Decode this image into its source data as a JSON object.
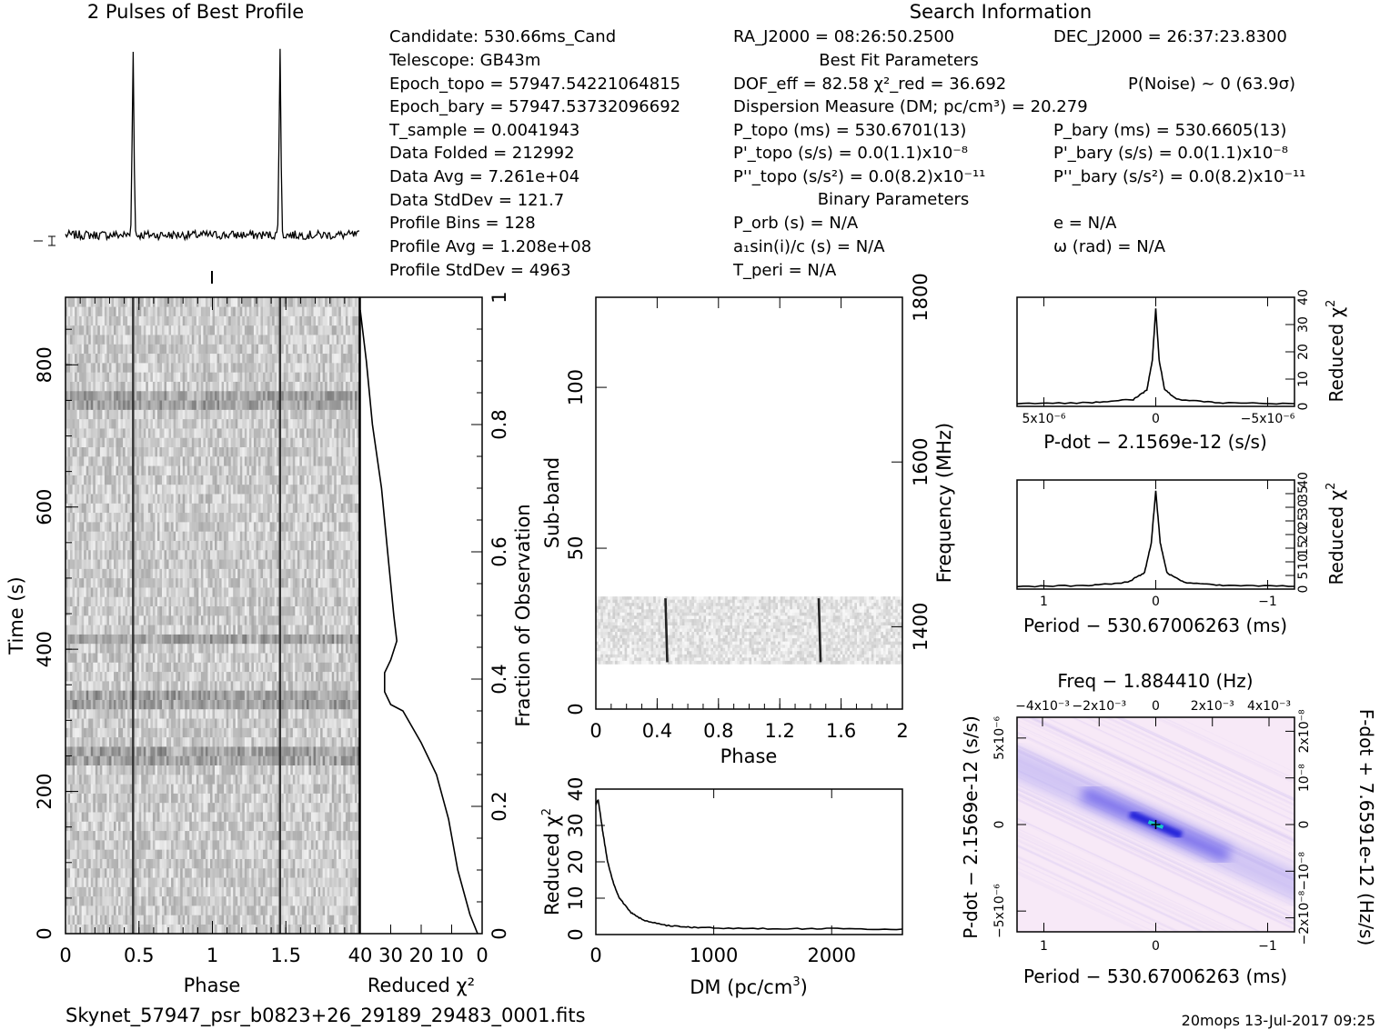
{
  "header": {
    "profile_title": "2 Pulses of Best Profile",
    "search_title": "Search Information",
    "best_fit_title": "Best Fit Parameters",
    "binary_title": "Binary Parameters"
  },
  "info_col1": [
    "Candidate:  530.66ms_Cand",
    "Telescope:  GB43m",
    "Epoch_topo = 57947.54221064815",
    "Epoch_bary = 57947.53732096692",
    "T_sample    =  0.0041943",
    "Data Folded    =  212992",
    "Data Avg       =  7.261e+04",
    "Data StdDev    =  121.7",
    "Profile Bins   =  128",
    "Profile Avg    =  1.208e+08",
    "Profile StdDev =  4963"
  ],
  "info_col2": [
    "RA_J2000 = 08:26:50.2500",
    "DOF_eff = 82.58  χ²_red = 36.692",
    "Dispersion Measure (DM; pc/cm³) = 20.279",
    "P_topo (ms) =  530.6701(13)",
    "P'_topo (s/s) = 0.0(1.1)x10⁻⁸",
    "P''_topo (s/s²) = 0.0(8.2)x10⁻¹¹",
    "P_orb (s) = N/A",
    "a₁sin(i)/c (s) = N/A",
    "T_peri = N/A"
  ],
  "info_col3": [
    "DEC_J2000 = 26:37:23.8300",
    "P(Noise) ~ 0   (63.9σ)",
    "P_bary (ms) =  530.6605(13)",
    "P'_bary (s/s) = 0.0(1.1)x10⁻⁸",
    "P''_bary (s/s²) = 0.0(8.2)x10⁻¹¹",
    "e = N/A",
    "ω (rad) = N/A"
  ],
  "footer": {
    "filename": "Skynet_57947_psr_b0823+26_29189_29483_0001.fits",
    "stamp": "20mops 13-Jul-2017 09:25"
  },
  "colors": {
    "ink": "#000000",
    "heat_low": "#f7e9f7",
    "heat_high": "#1a1ad8",
    "center": "#18c8c8"
  },
  "chart_data": [
    {
      "type": "line",
      "id": "profile",
      "title": "2 Pulses of Best Profile",
      "x": [
        0,
        0.2,
        0.4,
        0.44,
        0.46,
        0.48,
        0.6,
        0.8,
        1.0,
        1.2,
        1.4,
        1.44,
        1.46,
        1.48,
        1.6,
        1.8,
        2.0
      ],
      "y": [
        0.05,
        0.04,
        0.05,
        0.3,
        1.0,
        0.25,
        0.04,
        0.05,
        0.04,
        0.05,
        0.05,
        0.3,
        1.0,
        0.25,
        0.05,
        0.04,
        0.05
      ],
      "xlim": [
        0,
        2
      ],
      "ylim": [
        0,
        1.05
      ]
    },
    {
      "type": "heatmap",
      "id": "time-phase",
      "xlabel": "Phase",
      "ylabel": "Time (s)",
      "xticks": [
        "0",
        "0.5",
        "1",
        "1.5"
      ],
      "xtick_values": [
        0,
        0.5,
        1,
        1.5
      ],
      "yticks": [
        "0",
        "200",
        "400",
        "600",
        "800"
      ],
      "ytick_values": [
        0,
        200,
        400,
        600,
        800
      ],
      "xlim": [
        0,
        2
      ],
      "ylim": [
        0,
        895
      ],
      "pulse_phases": [
        0.46,
        1.46
      ],
      "bright_rows_s": [
        250,
        320,
        330,
        410,
        750
      ]
    },
    {
      "type": "line",
      "id": "chi2-vs-time",
      "xlabel": "Reduced χ²",
      "ylabel": "Fraction of Observation",
      "xticks": [
        "40",
        "30",
        "20",
        "10",
        "0"
      ],
      "xtick_values": [
        40,
        30,
        20,
        10,
        0
      ],
      "yticks": [
        "0",
        "0.2",
        "0.4",
        "0.6",
        "0.8",
        "1"
      ],
      "ytick_values": [
        0,
        0.2,
        0.4,
        0.6,
        0.8,
        1
      ],
      "xlim": [
        40,
        0
      ],
      "ylim": [
        0,
        1
      ],
      "x": [
        1.5,
        4,
        8,
        11,
        15,
        20,
        26,
        30,
        32,
        32,
        30,
        28,
        29,
        31,
        33,
        36,
        38,
        40
      ],
      "y": [
        0.0,
        0.03,
        0.1,
        0.18,
        0.25,
        0.3,
        0.35,
        0.36,
        0.38,
        0.41,
        0.43,
        0.46,
        0.5,
        0.6,
        0.7,
        0.8,
        0.9,
        0.98
      ]
    },
    {
      "type": "heatmap",
      "id": "subband-phase",
      "xlabel": "Phase",
      "ylabel": "Sub-band",
      "y2label": "Frequency (MHz)",
      "xticks": [
        "0",
        "0.4",
        "0.8",
        "1.2",
        "1.6",
        "2"
      ],
      "xtick_values": [
        0,
        0.4,
        0.8,
        1.2,
        1.6,
        2
      ],
      "yticks": [
        "0",
        "50",
        "100"
      ],
      "ytick_values": [
        0,
        50,
        100
      ],
      "y2ticks": [
        "1400",
        "1600",
        "1800"
      ],
      "y2tick_values": [
        1400,
        1600,
        1800
      ],
      "xlim": [
        0,
        2
      ],
      "ylim": [
        0,
        128
      ],
      "band_subbands": [
        14,
        35
      ],
      "pulse_phases": [
        0.46,
        1.46
      ]
    },
    {
      "type": "line",
      "id": "dm-curve",
      "xlabel": "DM (pc/cm³)",
      "ylabel": "Reduced χ²",
      "xticks": [
        "0",
        "1000",
        "2000"
      ],
      "xtick_values": [
        0,
        1000,
        2000
      ],
      "yticks": [
        "0",
        "10",
        "20",
        "30",
        "40"
      ],
      "ytick_values": [
        0,
        10,
        20,
        30,
        40
      ],
      "xlim": [
        0,
        2600
      ],
      "ylim": [
        0,
        40
      ],
      "x": [
        0,
        20,
        60,
        100,
        150,
        200,
        300,
        400,
        600,
        800,
        1000,
        1500,
        2000,
        2600
      ],
      "y": [
        36,
        37,
        28,
        20,
        14,
        10,
        6,
        4,
        2.5,
        2,
        1.8,
        1.6,
        1.6,
        1.5
      ]
    },
    {
      "type": "line",
      "id": "pdot-curve",
      "xlabel": "P-dot − 2.1569e-12 (s/s)",
      "ylabel": "Reduced χ²",
      "xticks": [
        "5x10⁻⁶",
        "0",
        "−5x10⁻⁶"
      ],
      "xtick_values": [
        5e-06,
        0,
        -5e-06
      ],
      "yticks": [
        "0",
        "10",
        "20",
        "30",
        "40"
      ],
      "ytick_values": [
        0,
        10,
        20,
        30,
        40
      ],
      "xlim": [
        6.2e-06,
        -6.2e-06
      ],
      "ylim": [
        0,
        40
      ],
      "x": [
        6.2e-06,
        3e-06,
        1e-06,
        4e-07,
        1.5e-07,
        0,
        -1.5e-07,
        -4e-07,
        -1e-06,
        -3e-06,
        -6.2e-06
      ],
      "y": [
        1,
        1.3,
        2.5,
        6,
        17,
        36,
        17,
        6,
        2.5,
        1.3,
        1
      ]
    },
    {
      "type": "line",
      "id": "period-curve",
      "xlabel": "Period − 530.67006263 (ms)",
      "ylabel": "Reduced χ²",
      "xticks": [
        "1",
        "0",
        "−1"
      ],
      "xtick_values": [
        1,
        0,
        -1
      ],
      "yticks": [
        "0",
        "5",
        "10",
        "15",
        "20",
        "25",
        "30",
        "35",
        "40"
      ],
      "ytick_values": [
        0,
        5,
        10,
        15,
        20,
        25,
        30,
        35,
        40
      ],
      "xlim": [
        1.24,
        -1.24
      ],
      "ylim": [
        0,
        40
      ],
      "x": [
        1.24,
        0.6,
        0.25,
        0.1,
        0.04,
        0,
        -0.04,
        -0.1,
        -0.25,
        -0.6,
        -1.24
      ],
      "y": [
        1,
        1.3,
        2.5,
        6,
        17,
        36,
        17,
        6,
        2.5,
        1.3,
        1
      ]
    },
    {
      "type": "heatmap",
      "id": "p-pdot-plane",
      "title": "Freq − 1.884410 (Hz)",
      "xlabel": "Period − 530.67006263 (ms)",
      "ylabel": "P-dot − 2.1569e-12 (s/s)",
      "y2label": "F-dot + 7.6591e-12 (Hz/s)",
      "xticks": [
        "1",
        "0",
        "−1"
      ],
      "xtick_values": [
        1,
        0,
        -1
      ],
      "x2ticks": [
        "−4x10⁻³",
        "−2x10⁻³",
        "0",
        "2x10⁻³",
        "4x10⁻³"
      ],
      "x2tick_values": [
        -0.004,
        -0.002,
        0,
        0.002,
        0.004
      ],
      "yticks": [
        "5x10⁻⁶",
        "0",
        "−5x10⁻⁶"
      ],
      "ytick_values": [
        5e-06,
        0,
        -5e-06
      ],
      "y2ticks": [
        "−2x10⁻⁸",
        "−10⁻⁸",
        "0",
        "10⁻⁸",
        "2x10⁻⁸"
      ],
      "y2tick_values": [
        -2e-08,
        -1e-08,
        0,
        1e-08,
        2e-08
      ],
      "xlim": [
        1.24,
        -1.24
      ],
      "ylim": [
        6.2e-06,
        -6.2e-06
      ],
      "best_point": [
        0,
        0
      ]
    }
  ]
}
